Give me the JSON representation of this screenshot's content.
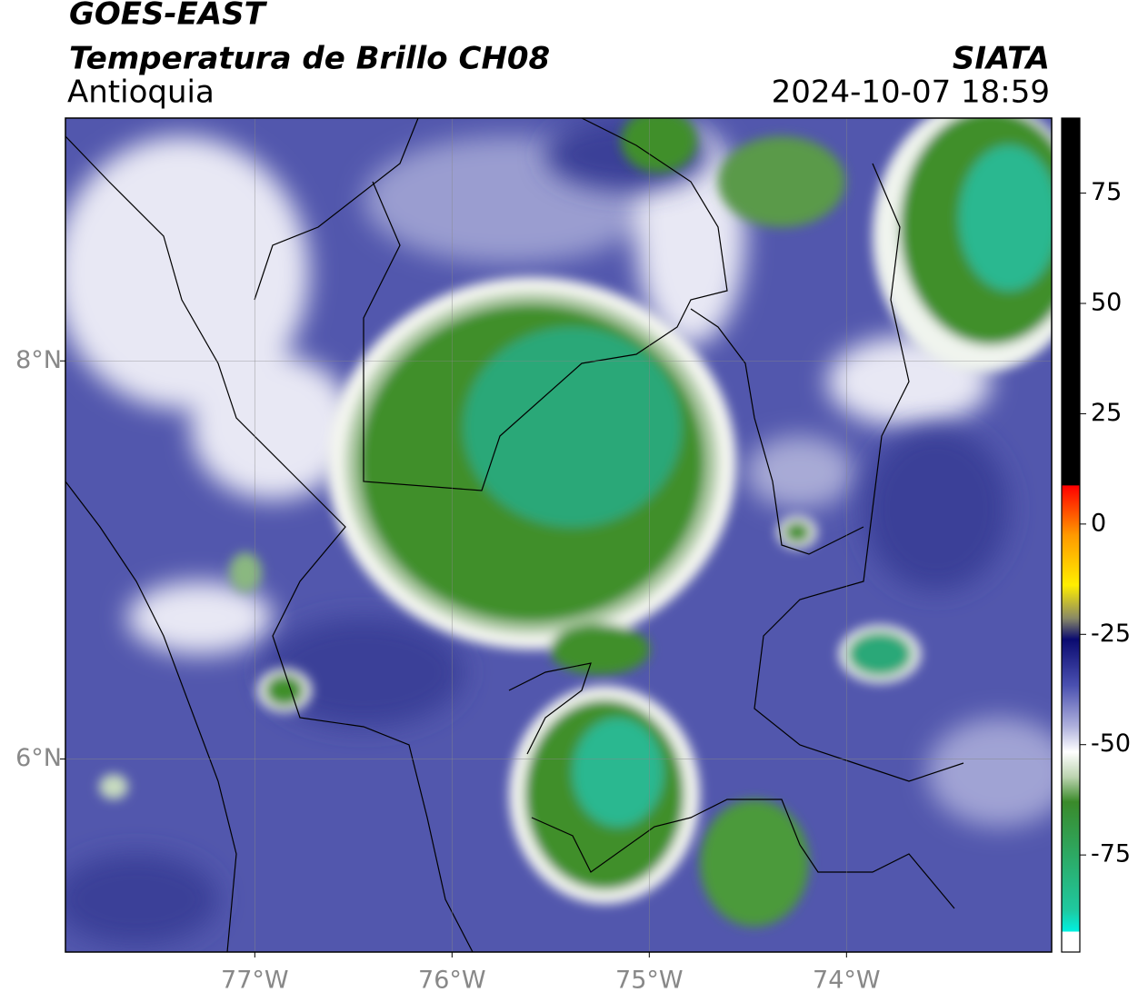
{
  "header": {
    "title": "GOES-EAST",
    "subtitle": "Temperatura de Brillo CH08",
    "region": "Antioquia",
    "source": "SIATA",
    "datetime": "2024-10-07 18:59"
  },
  "map": {
    "lon_range": [
      -77.96,
      -72.96
    ],
    "lat_range": [
      5.03,
      9.22
    ],
    "lon_ticks": [
      {
        "value": -77,
        "label": "77°W"
      },
      {
        "value": -76,
        "label": "76°W"
      },
      {
        "value": -75,
        "label": "75°W"
      },
      {
        "value": -74,
        "label": "74°W"
      }
    ],
    "lat_ticks": [
      {
        "value": 8,
        "label": "8°N"
      },
      {
        "value": 6,
        "label": "6°N"
      }
    ]
  },
  "colorbar": {
    "lim": [
      -97,
      92
    ],
    "ticks": [
      75,
      50,
      25,
      0,
      -25,
      -50,
      -75
    ]
  }
}
